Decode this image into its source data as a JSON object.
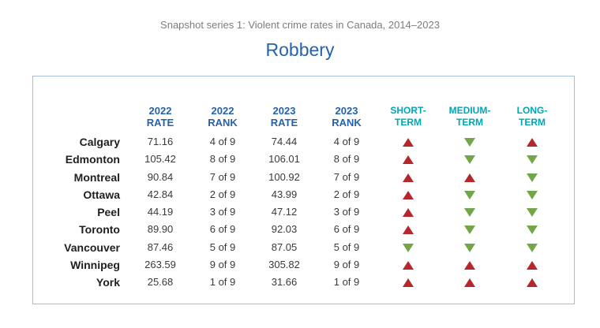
{
  "header": {
    "supertitle": "Snapshot series 1:  Violent crime rates in Canada, 2014–2023",
    "title": "Robbery"
  },
  "columns": {
    "rate2022": [
      "2022",
      "RATE"
    ],
    "rank2022": [
      "2022",
      "RANK"
    ],
    "rate2023": [
      "2023",
      "RATE"
    ],
    "rank2023": [
      "2023",
      "RANK"
    ],
    "short": [
      "SHORT-",
      "TERM"
    ],
    "medium": [
      "MEDIUM-",
      "TERM"
    ],
    "long": [
      "LONG-",
      "TERM"
    ]
  },
  "colors": {
    "up": "#b5272d",
    "down": "#72a649",
    "accent": "#2462ad",
    "signal": "#00a7b5"
  },
  "rows": [
    {
      "city": "Calgary",
      "rate2022": "71.16",
      "rank2022": "4 of 9",
      "rate2023": "74.44",
      "rank2023": "4 of 9",
      "short": "up",
      "medium": "down",
      "long": "up"
    },
    {
      "city": "Edmonton",
      "rate2022": "105.42",
      "rank2022": "8 of 9",
      "rate2023": "106.01",
      "rank2023": "8 of 9",
      "short": "up",
      "medium": "down",
      "long": "down"
    },
    {
      "city": "Montreal",
      "rate2022": "90.84",
      "rank2022": "7 of 9",
      "rate2023": "100.92",
      "rank2023": "7 of 9",
      "short": "up",
      "medium": "up",
      "long": "down"
    },
    {
      "city": "Ottawa",
      "rate2022": "42.84",
      "rank2022": "2 of 9",
      "rate2023": "43.99",
      "rank2023": "2 of 9",
      "short": "up",
      "medium": "down",
      "long": "down"
    },
    {
      "city": "Peel",
      "rate2022": "44.19",
      "rank2022": "3 of 9",
      "rate2023": "47.12",
      "rank2023": "3 of 9",
      "short": "up",
      "medium": "down",
      "long": "down"
    },
    {
      "city": "Toronto",
      "rate2022": "89.90",
      "rank2022": "6 of 9",
      "rate2023": "92.03",
      "rank2023": "6 of 9",
      "short": "up",
      "medium": "down",
      "long": "down"
    },
    {
      "city": "Vancouver",
      "rate2022": "87.46",
      "rank2022": "5 of 9",
      "rate2023": "87.05",
      "rank2023": "5 of 9",
      "short": "down",
      "medium": "down",
      "long": "down"
    },
    {
      "city": "Winnipeg",
      "rate2022": "263.59",
      "rank2022": "9 of 9",
      "rate2023": "305.82",
      "rank2023": "9 of 9",
      "short": "up",
      "medium": "up",
      "long": "up"
    },
    {
      "city": "York",
      "rate2022": "25.68",
      "rank2022": "1 of 9",
      "rate2023": "31.66",
      "rank2023": "1 of 9",
      "short": "up",
      "medium": "up",
      "long": "up"
    }
  ]
}
